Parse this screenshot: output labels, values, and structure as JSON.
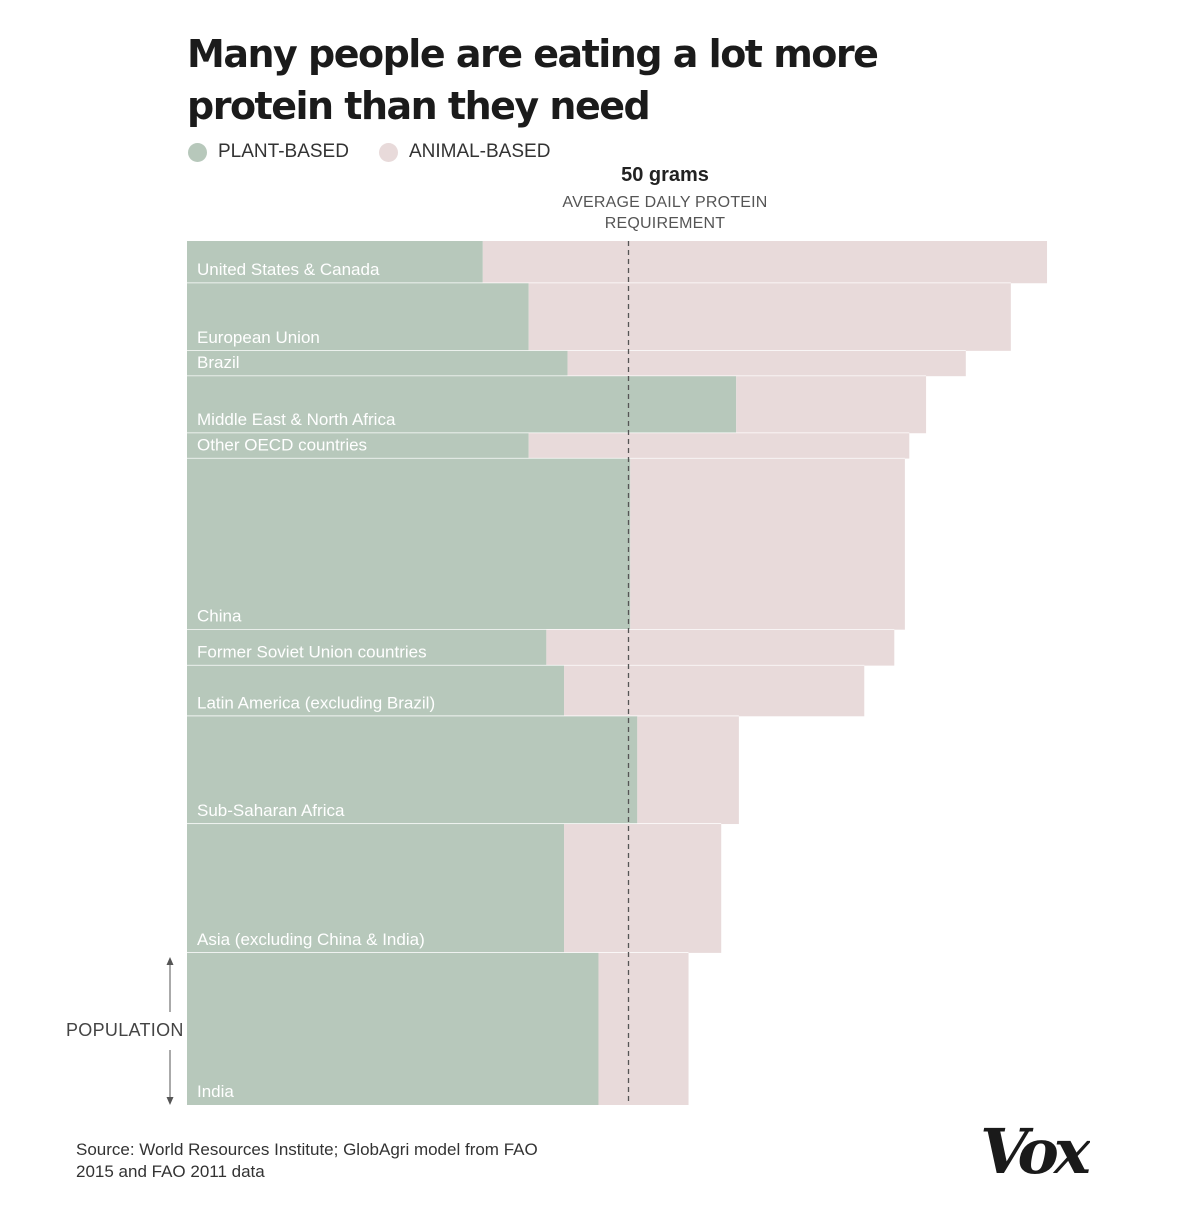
{
  "title": "Many people are eating a lot more protein than they need",
  "legend": [
    {
      "label": "PLANT-BASED",
      "color": "#b7c8bb"
    },
    {
      "label": "ANIMAL-BASED",
      "color": "#e8dada"
    }
  ],
  "reference": {
    "value_label": "50 grams",
    "description": "AVERAGE DAILY PROTEIN REQUIREMENT",
    "value": 50
  },
  "population_label": "POPULATION",
  "source": "Source: World Resources Institute; GlobAgri model from FAO 2015 and FAO 2011 data",
  "logo_text": "Vox",
  "colors": {
    "plant": "#b7c8bb",
    "animal": "#e8dada",
    "separator": "#ffffff",
    "reference_line": "#555555"
  },
  "chart_data": {
    "type": "bar",
    "subtype": "variable-width stacked bar (Marimekko-style); bar thickness proportional to population",
    "units": "grams of protein per person per day (approximate)",
    "xlim": [
      0,
      97.5
    ],
    "reference_line": 50,
    "categories": [
      "United States & Canada",
      "European Union",
      "Brazil",
      "Middle East & North Africa",
      "Other OECD countries",
      "China",
      "Former Soviet Union countries",
      "Latin America (excluding Brazil)",
      "Sub-Saharan Africa",
      "Asia (excluding China  & India)",
      "India"
    ],
    "population_share": [
      2.0,
      3.2,
      1.2,
      2.7,
      1.2,
      8.1,
      1.7,
      2.4,
      5.1,
      6.1,
      7.2
    ],
    "series": [
      {
        "name": "PLANT-BASED",
        "values": [
          33.5,
          38.7,
          43.1,
          62.2,
          38.7,
          50.2,
          40.7,
          42.7,
          51.0,
          42.7,
          46.6
        ]
      },
      {
        "name": "ANIMAL-BASED",
        "values": [
          63.9,
          54.6,
          45.1,
          21.5,
          43.1,
          31.1,
          39.4,
          34.0,
          11.5,
          17.8,
          10.2
        ]
      }
    ],
    "totals": [
      97.4,
      93.3,
      88.2,
      83.7,
      81.8,
      81.3,
      80.1,
      76.7,
      62.5,
      60.5,
      56.8
    ]
  }
}
